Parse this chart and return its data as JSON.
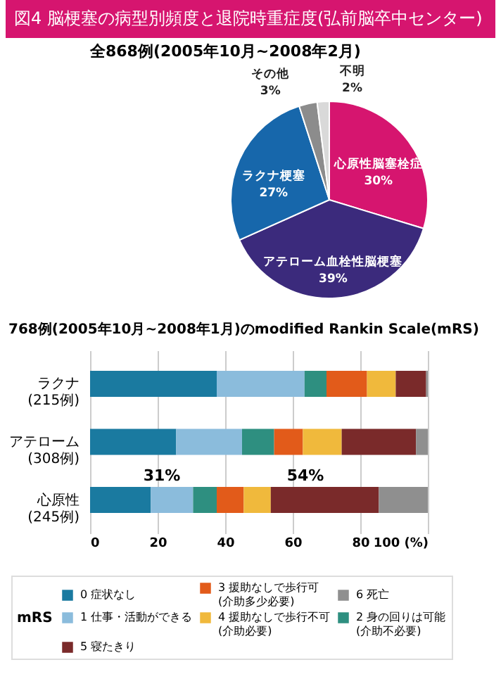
{
  "chart_data": [
    {
      "type": "pie",
      "title": "図4 脳梗塞の病型別頻度と退院時重症度(弘前脳卒中センター)",
      "subtitle": "全868例(2005年10月~2008年2月)",
      "categories": [
        "心原性脳塞栓症",
        "アテローム血栓性脳梗塞",
        "ラクナ梗塞",
        "その他",
        "不明"
      ],
      "values": [
        30,
        39,
        27,
        3,
        2
      ],
      "value_labels": [
        "30%",
        "39%",
        "27%",
        "3%",
        "2%"
      ],
      "colors": [
        "#d6156f",
        "#3b2a7c",
        "#1767ab",
        "#8c8c8c",
        "#d9d9d9"
      ]
    },
    {
      "type": "bar",
      "orientation": "horizontal",
      "stacked": true,
      "title": "768例(2005年10月~2008年1月)のmodified Rankin Scale(mRS)",
      "categories": [
        "ラクナ\n(215例)",
        "アテローム\n(308例)",
        "心原性\n(245例)"
      ],
      "xlim": [
        0,
        100
      ],
      "xticks": [
        0,
        20,
        40,
        60,
        80,
        {
          "value": 100,
          "label": "100 (%)"
        }
      ],
      "grid": "x",
      "legend": "bottom",
      "legend_title": "mRS",
      "series": [
        {
          "name": "0 症状なし",
          "color": "#1a7aa0",
          "values": [
            37.5,
            25.5,
            18
          ]
        },
        {
          "name": "1 仕事・活動ができる",
          "color": "#8bbcdc",
          "values": [
            26,
            19.5,
            12.5
          ]
        },
        {
          "name": "2 身の回りは可能\n(介助不必要)",
          "color": "#2e8f80",
          "values": [
            6.5,
            9.5,
            7
          ]
        },
        {
          "name": "3 援助なしで歩行可\n(介助多少必要)",
          "color": "#e25b1a",
          "values": [
            12,
            8.5,
            8
          ]
        },
        {
          "name": "4 援助なしで歩行不可\n(介助必要)",
          "color": "#f0b93c",
          "values": [
            8.5,
            11.5,
            8
          ]
        },
        {
          "name": "5 寝たきり",
          "color": "#7a2a2a",
          "values": [
            9,
            22,
            32
          ]
        },
        {
          "name": "6 死亡",
          "color": "#8f8f8f",
          "values": [
            0.5,
            3.5,
            14.5
          ]
        }
      ],
      "annotations": [
        "31%",
        "54%"
      ]
    }
  ]
}
